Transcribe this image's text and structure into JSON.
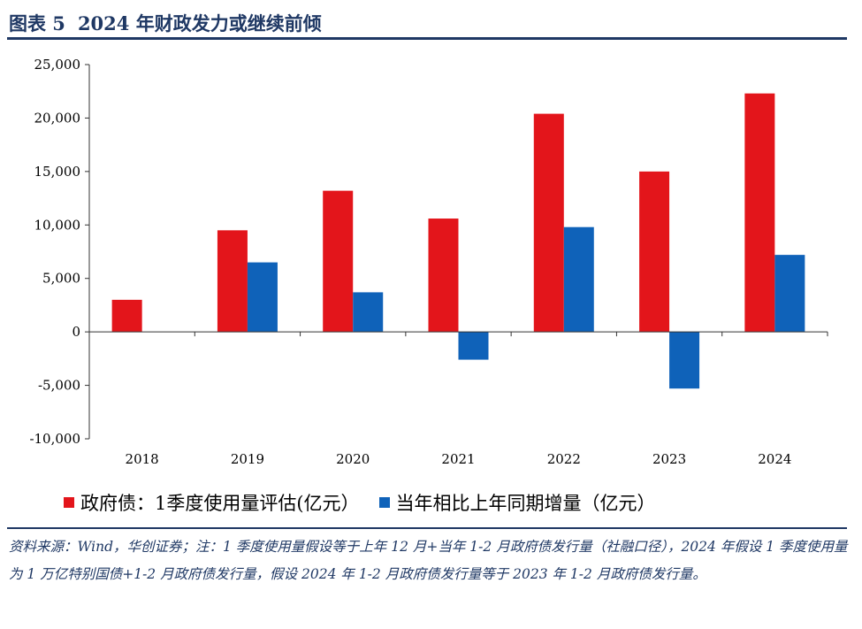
{
  "figure": {
    "label": "图表 5",
    "title": "2024 年财政发力或继续前倾",
    "source": "资料来源：Wind，华创证券；注：1 季度使用量假设等于上年 12 月+当年 1-2 月政府债发行量（社融口径），2024 年假设 1 季度使用量为 1 万亿特别国债+1-2 月政府债发行量，假设 2024 年 1-2 月政府债发行量等于 2023 年 1-2 月政府债发行量。"
  },
  "colors": {
    "series1": "#e3151b",
    "series2": "#0f62b9",
    "title": "#1f3864"
  },
  "chart_data": {
    "type": "bar",
    "categories": [
      "2018",
      "2019",
      "2020",
      "2021",
      "2022",
      "2023",
      "2024"
    ],
    "series": [
      {
        "name": "政府债：1季度使用量评估(亿元）",
        "values": [
          3000,
          9500,
          13200,
          10600,
          20400,
          15000,
          22300
        ]
      },
      {
        "name": "当年相比上年同期增量（亿元）",
        "values": [
          null,
          6500,
          3700,
          -2600,
          9800,
          -5300,
          7200
        ]
      }
    ],
    "yticks": [
      "25,000",
      "20,000",
      "15,000",
      "10,000",
      "5,000",
      "0",
      "-5,000",
      "-10,000"
    ],
    "ylim": [
      -10000,
      25000
    ],
    "xlabel": "",
    "ylabel": "",
    "legend_position": "bottom",
    "grid": false
  }
}
